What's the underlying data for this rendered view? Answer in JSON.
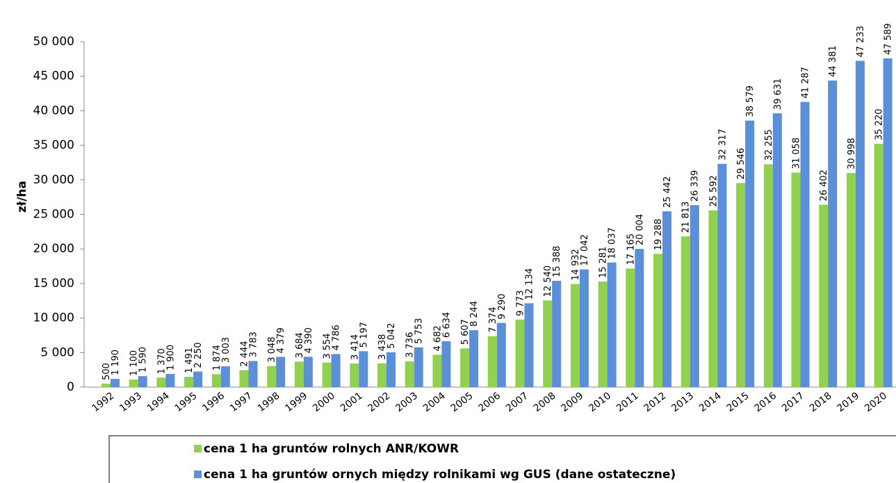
{
  "chart_data": {
    "type": "bar",
    "y_label": "zł/ha",
    "categories": [
      "1992",
      "1993",
      "1994",
      "1995",
      "1996",
      "1997",
      "1998",
      "1999",
      "2000",
      "2001",
      "2002",
      "2003",
      "2004",
      "2005",
      "2006",
      "2007",
      "2008",
      "2009",
      "2010",
      "2011",
      "2012",
      "2013",
      "2014",
      "2015",
      "2016",
      "2017",
      "2018",
      "2019",
      "2020"
    ],
    "series": [
      {
        "name": "cena 1 ha gruntów rolnych ANR/KOWR",
        "color": "#92d050",
        "values": [
          500,
          1100,
          1370,
          1491,
          1874,
          2444,
          3048,
          3684,
          3554,
          3414,
          3438,
          3736,
          4682,
          5607,
          7374,
          9773,
          12540,
          14932,
          15281,
          17165,
          19288,
          21813,
          25592,
          29546,
          32255,
          31058,
          26402,
          30998,
          35220
        ],
        "value_labels": [
          "500",
          "1 100",
          "1 370",
          "1 491",
          "1 874",
          "2 444",
          "3 048",
          "3 684",
          "3 554",
          "3 414",
          "3 438",
          "3 736",
          "4 682",
          "5 607",
          "7 374",
          "9 773",
          "12 540",
          "14 932",
          "15 281",
          "17 165",
          "19 288",
          "21 813",
          "25 592",
          "29 546",
          "32 255",
          "31 058",
          "26 402",
          "30 998",
          "35 220"
        ]
      },
      {
        "name": "cena 1 ha gruntów ornych między rolnikami wg GUS (dane ostateczne)",
        "color": "#5b8fd8",
        "values": [
          1190,
          1590,
          1900,
          2250,
          3003,
          3783,
          4379,
          4390,
          4786,
          5197,
          5042,
          5753,
          6634,
          8244,
          9290,
          12134,
          15388,
          17042,
          18037,
          20004,
          25442,
          26339,
          32317,
          38579,
          39631,
          41287,
          44381,
          47233,
          47589
        ],
        "value_labels": [
          "1 190",
          "1 590",
          "1 900",
          "2 250",
          "3 003",
          "3 783",
          "4 379",
          "4 390",
          "4 786",
          "5 197",
          "5 042",
          "5 753",
          "6 634",
          "8 244",
          "9 290",
          "12 134",
          "15 388",
          "17 042",
          "18 037",
          "20 004",
          "25 442",
          "26 339",
          "32 317",
          "38 579",
          "39 631",
          "41 287",
          "44 381",
          "47 233",
          "47 589"
        ]
      }
    ],
    "ylim": [
      0,
      50000
    ],
    "yticks": [
      0,
      {
        "value": 5000,
        "label": "5 000"
      },
      {
        "value": 10000,
        "label": "10 000"
      },
      {
        "value": 15000,
        "label": "15 000"
      },
      {
        "value": 20000,
        "label": "20 000"
      },
      {
        "value": 25000,
        "label": "25 000"
      },
      {
        "value": 30000,
        "label": "30 000"
      },
      {
        "value": 35000,
        "label": "35 000"
      },
      {
        "value": 40000,
        "label": "40 000"
      },
      {
        "value": 45000,
        "label": "45 000"
      },
      {
        "value": 50000,
        "label": "50 000"
      }
    ],
    "legend": "bottom"
  }
}
